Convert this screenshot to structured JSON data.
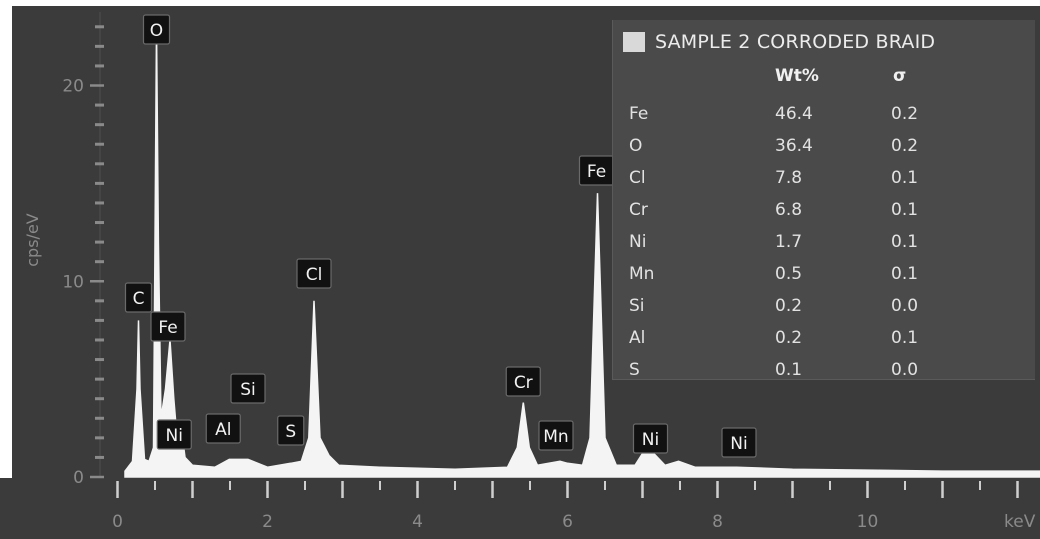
{
  "colors": {
    "background": "#3b3b3b",
    "spectrum_fill": "#f4f4f4",
    "panel_bg": "#4a4a4a",
    "axis_text": "#8a8a8a",
    "marker_boxes": "#111111"
  },
  "chart_data": {
    "type": "area",
    "title": "",
    "xlabel": "keV",
    "ylabel": "cps/eV",
    "xlim": [
      -0.1,
      12.3
    ],
    "ylim": [
      0,
      23.5
    ],
    "x_ticks": [
      "0",
      "2",
      "4",
      "6",
      "8",
      "10"
    ],
    "y_ticks": [
      "0",
      "10",
      "20"
    ],
    "grid": false,
    "series": [
      {
        "points": [
          [
            0.1,
            0.3
          ],
          [
            0.2,
            0.8
          ],
          [
            0.26,
            4.5
          ],
          [
            0.28,
            8.0
          ],
          [
            0.3,
            4.5
          ],
          [
            0.36,
            0.9
          ],
          [
            0.42,
            0.8
          ],
          [
            0.48,
            1.5
          ],
          [
            0.5,
            12.0
          ],
          [
            0.52,
            23.0
          ],
          [
            0.545,
            12.0
          ],
          [
            0.58,
            3.0
          ],
          [
            0.64,
            4.5
          ],
          [
            0.7,
            7.0
          ],
          [
            0.75,
            4.0
          ],
          [
            0.81,
            1.2
          ],
          [
            0.85,
            2.5
          ],
          [
            0.9,
            1.0
          ],
          [
            1.0,
            0.6
          ],
          [
            1.3,
            0.5
          ],
          [
            1.49,
            0.9
          ],
          [
            1.74,
            0.9
          ],
          [
            2.0,
            0.5
          ],
          [
            2.31,
            0.7
          ],
          [
            2.45,
            0.8
          ],
          [
            2.55,
            2.0
          ],
          [
            2.62,
            9.0
          ],
          [
            2.7,
            2.0
          ],
          [
            2.82,
            1.1
          ],
          [
            2.95,
            0.6
          ],
          [
            3.5,
            0.5
          ],
          [
            4.5,
            0.4
          ],
          [
            5.2,
            0.5
          ],
          [
            5.33,
            1.5
          ],
          [
            5.41,
            3.8
          ],
          [
            5.49,
            1.5
          ],
          [
            5.6,
            0.6
          ],
          [
            5.9,
            0.8
          ],
          [
            6.0,
            0.7
          ],
          [
            6.2,
            0.6
          ],
          [
            6.3,
            2.0
          ],
          [
            6.4,
            14.5
          ],
          [
            6.5,
            2.0
          ],
          [
            6.65,
            0.6
          ],
          [
            6.9,
            0.6
          ],
          [
            7.0,
            1.2
          ],
          [
            7.06,
            2.0
          ],
          [
            7.15,
            1.2
          ],
          [
            7.3,
            0.6
          ],
          [
            7.48,
            0.8
          ],
          [
            7.7,
            0.5
          ],
          [
            8.26,
            0.5
          ],
          [
            9.0,
            0.4
          ],
          [
            10.0,
            0.35
          ],
          [
            11.0,
            0.3
          ],
          [
            12.3,
            0.3
          ]
        ]
      }
    ],
    "peak_labels": [
      {
        "label": "O",
        "x": 0.52
      },
      {
        "label": "C",
        "x": 0.28
      },
      {
        "label": "Fe",
        "x": 0.7
      },
      {
        "label": "Ni",
        "x": 0.85
      },
      {
        "label": "Al",
        "x": 1.49
      },
      {
        "label": "Si",
        "x": 1.74
      },
      {
        "label": "S",
        "x": 2.31
      },
      {
        "label": "Cl",
        "x": 2.62
      },
      {
        "label": "Cr",
        "x": 5.41
      },
      {
        "label": "Mn",
        "x": 5.9
      },
      {
        "label": "Fe",
        "x": 6.4
      },
      {
        "label": "Ni",
        "x": 7.48
      },
      {
        "label": "Ni",
        "x": 8.26
      }
    ]
  },
  "results_panel": {
    "title": "SAMPLE 2 CORRODED BRAID",
    "headers": {
      "wt": "Wt%",
      "sigma": "σ"
    },
    "rows": [
      {
        "element": "Fe",
        "wt": "46.4",
        "sigma": "0.2"
      },
      {
        "element": "O",
        "wt": "36.4",
        "sigma": "0.2"
      },
      {
        "element": "Cl",
        "wt": "7.8",
        "sigma": "0.1"
      },
      {
        "element": "Cr",
        "wt": "6.8",
        "sigma": "0.1"
      },
      {
        "element": "Ni",
        "wt": "1.7",
        "sigma": "0.1"
      },
      {
        "element": "Mn",
        "wt": "0.5",
        "sigma": "0.1"
      },
      {
        "element": "Si",
        "wt": "0.2",
        "sigma": "0.0"
      },
      {
        "element": "Al",
        "wt": "0.2",
        "sigma": "0.1"
      },
      {
        "element": "S",
        "wt": "0.1",
        "sigma": "0.0"
      }
    ]
  }
}
